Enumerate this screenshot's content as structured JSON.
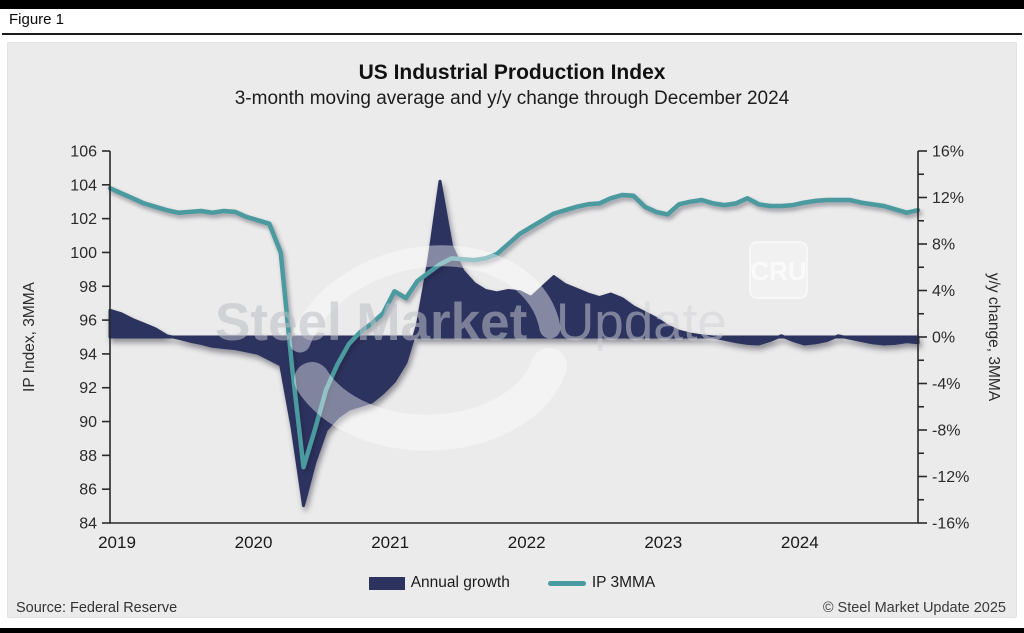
{
  "figure_label": "Figure 1",
  "watermark": {
    "bold": "Steel Market",
    "light": "Update",
    "cru": "CRU"
  },
  "footer": {
    "source": "Source: Federal Reserve",
    "copyright": "© Steel Market Update 2025"
  },
  "colors": {
    "panel_bg": "#ebebeb",
    "navy": "#2d335f",
    "teal": "#4a9aa0",
    "axis": "#2a2a2a"
  },
  "chart_data": {
    "type": "line+area dual-axis combo",
    "title": "US Industrial Production Index",
    "subtitle": "3-month moving average and y/y change through December 2024",
    "x": {
      "unit": "month",
      "start": "2019-01",
      "end": "2024-12",
      "year_labels": [
        "2019",
        "2020",
        "2021",
        "2022",
        "2023",
        "2024"
      ]
    },
    "left_axis": {
      "label": "IP Index, 3MMA",
      "min": 84,
      "max": 106,
      "tick_step": 2
    },
    "right_axis": {
      "label": "y/y change, 3MMA",
      "min": -16,
      "max": 16,
      "major_tick_step": 4,
      "minor_tick_step": 2,
      "tick_suffix": "%"
    },
    "grid": false,
    "legend_position": "bottom-center",
    "series": [
      {
        "name": "Annual growth",
        "type": "area",
        "axis": "right",
        "color": "#2d335f",
        "values": [
          2.3,
          2.0,
          1.5,
          1.1,
          0.7,
          0.1,
          -0.1,
          -0.35,
          -0.55,
          -0.8,
          -0.9,
          -1.0,
          -1.2,
          -1.4,
          -1.9,
          -2.4,
          -7.8,
          -14.5,
          -10.8,
          -8.0,
          -6.9,
          -6.2,
          -5.9,
          -5.6,
          -4.8,
          -3.8,
          -2.2,
          1.0,
          6.5,
          13.4,
          7.9,
          5.7,
          4.6,
          4.0,
          3.8,
          4.0,
          3.9,
          3.4,
          4.3,
          5.2,
          4.5,
          4.1,
          3.7,
          3.4,
          3.7,
          3.3,
          2.6,
          2.1,
          1.6,
          0.95,
          0.5,
          0.25,
          0.1,
          0.0,
          -0.2,
          -0.4,
          -0.55,
          -0.6,
          -0.3,
          0.1,
          -0.3,
          -0.6,
          -0.5,
          -0.3,
          0.1,
          -0.1,
          -0.3,
          -0.5,
          -0.6,
          -0.55,
          -0.4,
          -0.5
        ]
      },
      {
        "name": "IP 3MMA",
        "type": "line",
        "axis": "left",
        "color": "#4a9aa0",
        "values": [
          103.8,
          103.5,
          103.2,
          102.9,
          102.7,
          102.5,
          102.35,
          102.4,
          102.45,
          102.35,
          102.45,
          102.4,
          102.1,
          101.9,
          101.7,
          100.0,
          93.2,
          87.3,
          89.5,
          91.9,
          93.4,
          94.6,
          95.3,
          95.8,
          96.4,
          97.7,
          97.3,
          98.3,
          98.8,
          99.3,
          99.65,
          99.6,
          99.55,
          99.65,
          99.9,
          100.5,
          101.1,
          101.5,
          101.9,
          102.3,
          102.5,
          102.7,
          102.85,
          102.9,
          103.2,
          103.4,
          103.35,
          102.7,
          102.4,
          102.25,
          102.85,
          103.0,
          103.1,
          102.9,
          102.8,
          102.9,
          103.2,
          102.85,
          102.75,
          102.75,
          102.8,
          102.95,
          103.05,
          103.1,
          103.1,
          103.1,
          102.95,
          102.85,
          102.75,
          102.55,
          102.35,
          102.5
        ]
      }
    ]
  }
}
